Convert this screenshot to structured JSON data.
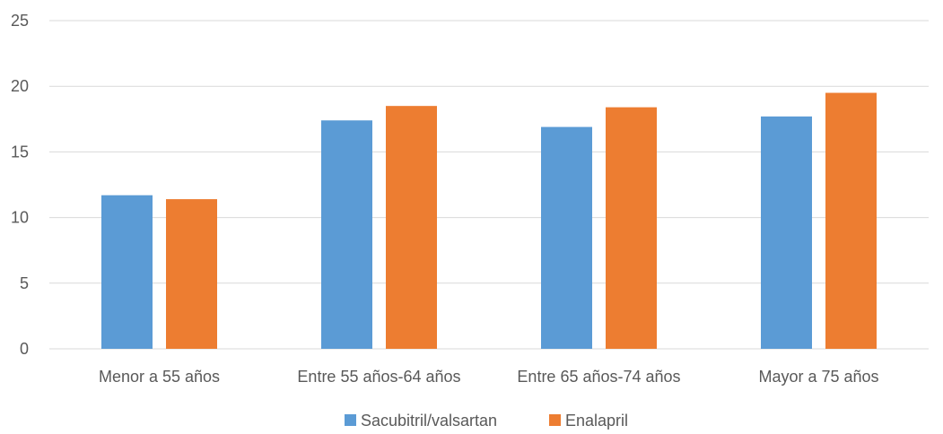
{
  "chart_data": {
    "type": "bar",
    "categories": [
      "Menor a 55 años",
      "Entre 55 años-64 años",
      "Entre 65 años-74 años",
      "Mayor a 75 años"
    ],
    "series": [
      {
        "name": "Sacubitril/valsartan",
        "color": "#5b9bd5",
        "values": [
          11.7,
          17.4,
          16.9,
          17.7
        ]
      },
      {
        "name": "Enalapril",
        "color": "#ed7d31",
        "values": [
          11.4,
          18.5,
          18.4,
          19.5
        ]
      }
    ],
    "ylim": [
      0,
      25
    ],
    "yticks": [
      0,
      5,
      10,
      15,
      20,
      25
    ],
    "grid": true,
    "legend_position": "bottom"
  }
}
